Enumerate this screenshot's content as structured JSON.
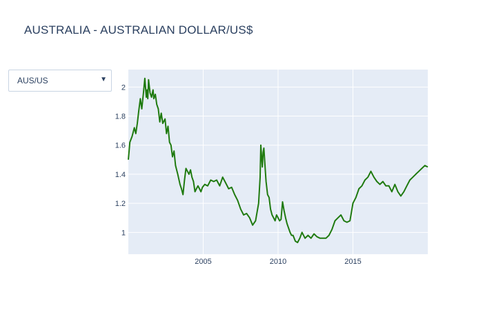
{
  "title": "AUSTRALIA - AUSTRALIAN DOLLAR/US$",
  "dropdown": {
    "selected": "AUS/US",
    "icon": "triangle-down-icon"
  },
  "colors": {
    "line": "#1f7a0f",
    "plot_bg": "#e5ecf6",
    "grid": "#ffffff",
    "text": "#2a3f5f"
  },
  "chart_data": {
    "type": "line",
    "title": "AUSTRALIA - AUSTRALIAN DOLLAR/US$",
    "xlabel": "",
    "ylabel": "",
    "xlim": [
      2000.0,
      2020.0
    ],
    "ylim": [
      0.85,
      2.12
    ],
    "xticks": [
      2005,
      2010,
      2015
    ],
    "xtick_labels": [
      "2005",
      "2010",
      "2015"
    ],
    "yticks": [
      1,
      1.2,
      1.4,
      1.6,
      1.8,
      2
    ],
    "ytick_labels": [
      "1",
      "1.2",
      "1.4",
      "1.6",
      "1.8",
      "2"
    ],
    "grid": true,
    "series": [
      {
        "name": "",
        "x": [
          2000.0,
          2000.1,
          2000.25,
          2000.4,
          2000.5,
          2000.6,
          2000.7,
          2000.8,
          2000.9,
          2001.0,
          2001.1,
          2001.2,
          2001.25,
          2001.3,
          2001.35,
          2001.45,
          2001.55,
          2001.65,
          2001.7,
          2001.8,
          2001.9,
          2002.0,
          2002.1,
          2002.2,
          2002.3,
          2002.45,
          2002.55,
          2002.65,
          2002.75,
          2002.85,
          2002.95,
          2003.05,
          2003.15,
          2003.3,
          2003.45,
          2003.55,
          2003.65,
          2003.75,
          2003.85,
          2003.95,
          2004.05,
          2004.15,
          2004.25,
          2004.35,
          2004.45,
          2004.55,
          2004.65,
          2004.75,
          2004.85,
          2004.95,
          2005.1,
          2005.3,
          2005.5,
          2005.7,
          2005.9,
          2006.1,
          2006.3,
          2006.5,
          2006.7,
          2006.9,
          2007.1,
          2007.3,
          2007.5,
          2007.7,
          2007.9,
          2008.1,
          2008.3,
          2008.5,
          2008.7,
          2008.8,
          2008.85,
          2008.9,
          2008.95,
          2009.0,
          2009.05,
          2009.15,
          2009.2,
          2009.3,
          2009.4,
          2009.5,
          2009.6,
          2009.7,
          2009.8,
          2009.9,
          2010.0,
          2010.1,
          2010.2,
          2010.3,
          2010.4,
          2010.5,
          2010.6,
          2010.7,
          2010.8,
          2010.9,
          2011.0,
          2011.15,
          2011.3,
          2011.45,
          2011.6,
          2011.8,
          2012.0,
          2012.2,
          2012.4,
          2012.6,
          2012.8,
          2013.0,
          2013.2,
          2013.4,
          2013.6,
          2013.8,
          2014.0,
          2014.2,
          2014.4,
          2014.6,
          2014.8,
          2015.0,
          2015.2,
          2015.4,
          2015.6,
          2015.8,
          2016.0,
          2016.2,
          2016.4,
          2016.6,
          2016.8,
          2017.0,
          2017.2,
          2017.4,
          2017.6,
          2017.8,
          2018.0,
          2018.2,
          2018.4,
          2018.6,
          2018.8,
          2019.0,
          2019.2,
          2019.4,
          2019.6,
          2019.8,
          2020.0
        ],
        "y": [
          1.5,
          1.62,
          1.66,
          1.72,
          1.68,
          1.75,
          1.84,
          1.92,
          1.85,
          1.95,
          2.06,
          1.93,
          1.98,
          1.92,
          2.05,
          1.96,
          1.93,
          1.98,
          1.92,
          1.95,
          1.88,
          1.85,
          1.76,
          1.82,
          1.75,
          1.78,
          1.68,
          1.73,
          1.62,
          1.6,
          1.52,
          1.56,
          1.46,
          1.4,
          1.33,
          1.3,
          1.26,
          1.36,
          1.44,
          1.42,
          1.4,
          1.43,
          1.38,
          1.35,
          1.28,
          1.3,
          1.32,
          1.3,
          1.28,
          1.31,
          1.33,
          1.32,
          1.36,
          1.35,
          1.36,
          1.32,
          1.38,
          1.34,
          1.3,
          1.31,
          1.26,
          1.22,
          1.16,
          1.12,
          1.13,
          1.1,
          1.05,
          1.08,
          1.2,
          1.38,
          1.6,
          1.52,
          1.45,
          1.55,
          1.58,
          1.42,
          1.35,
          1.26,
          1.24,
          1.16,
          1.12,
          1.1,
          1.08,
          1.12,
          1.1,
          1.08,
          1.09,
          1.21,
          1.15,
          1.1,
          1.06,
          1.03,
          1.0,
          0.98,
          0.98,
          0.94,
          0.93,
          0.96,
          1.0,
          0.96,
          0.98,
          0.96,
          0.99,
          0.97,
          0.96,
          0.96,
          0.96,
          0.98,
          1.02,
          1.08,
          1.1,
          1.12,
          1.08,
          1.07,
          1.08,
          1.2,
          1.24,
          1.3,
          1.32,
          1.36,
          1.38,
          1.42,
          1.38,
          1.35,
          1.33,
          1.35,
          1.32,
          1.32,
          1.28,
          1.33,
          1.28,
          1.25,
          1.28,
          1.32,
          1.36,
          1.38,
          1.4,
          1.42,
          1.44,
          1.46,
          1.45
        ]
      }
    ]
  }
}
